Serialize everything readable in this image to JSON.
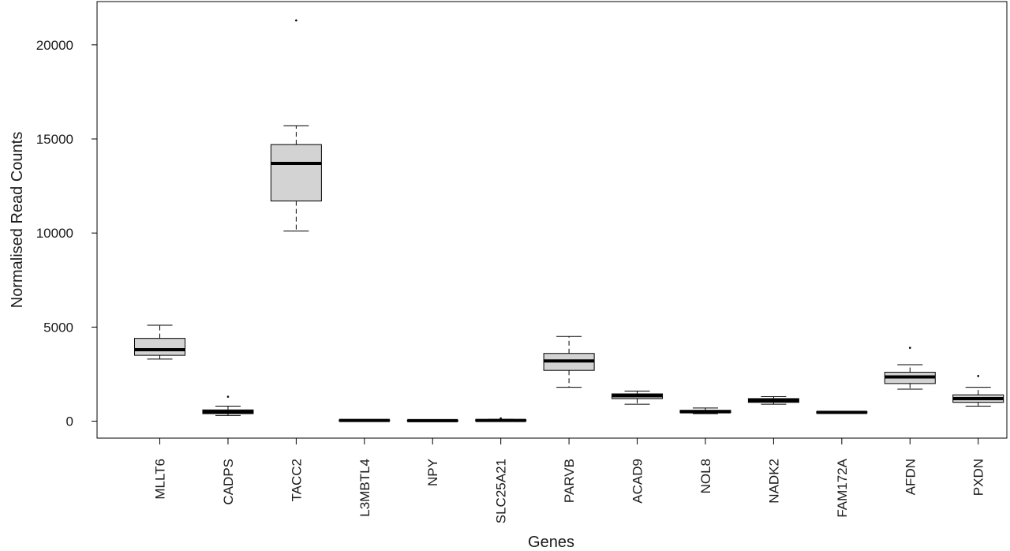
{
  "chart_data": {
    "type": "boxplot",
    "xlabel": "Genes",
    "ylabel": "Normalised Read Counts",
    "ylim": [
      -900,
      22300
    ],
    "yticks": [
      0,
      5000,
      10000,
      15000,
      20000
    ],
    "colors": {
      "box_fill": "#d3d3d3",
      "line": "#000000",
      "background": "#ffffff"
    },
    "categories": [
      "MLLT6",
      "CADPS",
      "TACC2",
      "L3MBTL4",
      "NPY",
      "SLC25A21",
      "PARVB",
      "ACAD9",
      "NOL8",
      "NADK2",
      "FAM172A",
      "AFDN",
      "PXDN"
    ],
    "boxes": [
      {
        "gene": "MLLT6",
        "whisker_low": 3300,
        "q1": 3500,
        "median": 3800,
        "q3": 4400,
        "whisker_high": 5100,
        "outliers": []
      },
      {
        "gene": "CADPS",
        "whisker_low": 300,
        "q1": 400,
        "median": 500,
        "q3": 600,
        "whisker_high": 800,
        "outliers": [
          1300
        ]
      },
      {
        "gene": "TACC2",
        "whisker_low": 10100,
        "q1": 11700,
        "median": 13700,
        "q3": 14700,
        "whisker_high": 15700,
        "outliers": [
          21300
        ]
      },
      {
        "gene": "L3MBTL4",
        "whisker_low": 20,
        "q1": 30,
        "median": 40,
        "q3": 60,
        "whisker_high": 80,
        "outliers": []
      },
      {
        "gene": "NPY",
        "whisker_low": 10,
        "q1": 20,
        "median": 30,
        "q3": 50,
        "whisker_high": 60,
        "outliers": []
      },
      {
        "gene": "SLC25A21",
        "whisker_low": 10,
        "q1": 20,
        "median": 40,
        "q3": 70,
        "whisker_high": 100,
        "outliers": [
          150
        ]
      },
      {
        "gene": "PARVB",
        "whisker_low": 1800,
        "q1": 2700,
        "median": 3200,
        "q3": 3600,
        "whisker_high": 4500,
        "outliers": []
      },
      {
        "gene": "ACAD9",
        "whisker_low": 900,
        "q1": 1200,
        "median": 1350,
        "q3": 1450,
        "whisker_high": 1600,
        "outliers": []
      },
      {
        "gene": "NOL8",
        "whisker_low": 400,
        "q1": 450,
        "median": 500,
        "q3": 580,
        "whisker_high": 700,
        "outliers": []
      },
      {
        "gene": "NADK2",
        "whisker_low": 900,
        "q1": 1000,
        "median": 1100,
        "q3": 1200,
        "whisker_high": 1300,
        "outliers": []
      },
      {
        "gene": "FAM172A",
        "whisker_low": 420,
        "q1": 440,
        "median": 470,
        "q3": 500,
        "whisker_high": 520,
        "outliers": []
      },
      {
        "gene": "AFDN",
        "whisker_low": 1700,
        "q1": 2000,
        "median": 2350,
        "q3": 2600,
        "whisker_high": 3000,
        "outliers": [
          3900
        ]
      },
      {
        "gene": "PXDN",
        "whisker_low": 800,
        "q1": 1000,
        "median": 1200,
        "q3": 1400,
        "whisker_high": 1800,
        "outliers": [
          2400
        ]
      }
    ]
  }
}
